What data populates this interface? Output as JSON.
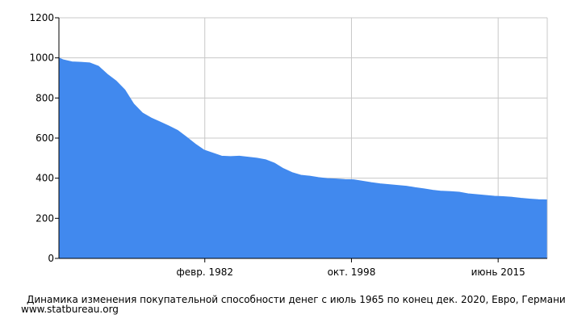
{
  "chart_data": {
    "type": "area",
    "xlabel": "",
    "ylabel": "",
    "ylim": [
      0,
      1200
    ],
    "yticks": [
      0,
      200,
      400,
      600,
      800,
      1000,
      1200
    ],
    "xtick_labels": [
      "февр. 1982",
      "окт. 1998",
      "июнь 2015"
    ],
    "xtick_positions": [
      1982.08,
      1998.75,
      2015.42
    ],
    "xlim": [
      1965.5,
      2021.0
    ],
    "grid": true,
    "series_color": "#4189ee",
    "x": [
      1965.5,
      1966.0,
      1967.0,
      1968.0,
      1969.0,
      1970.0,
      1971.0,
      1972.0,
      1973.0,
      1974.0,
      1975.0,
      1976.0,
      1977.0,
      1978.0,
      1979.0,
      1980.0,
      1981.0,
      1982.0,
      1983.0,
      1984.0,
      1985.0,
      1986.0,
      1987.0,
      1988.0,
      1989.0,
      1990.0,
      1991.0,
      1992.0,
      1993.0,
      1994.0,
      1995.0,
      1996.0,
      1997.0,
      1998.0,
      1999.0,
      2000.0,
      2001.0,
      2002.0,
      2003.0,
      2004.0,
      2005.0,
      2006.0,
      2007.0,
      2008.0,
      2009.0,
      2010.0,
      2011.0,
      2012.0,
      2013.0,
      2014.0,
      2015.0,
      2016.0,
      2017.0,
      2018.0,
      2019.0,
      2020.0,
      2020.92
    ],
    "values": [
      1000,
      990,
      980,
      978,
      975,
      958,
      918,
      885,
      840,
      770,
      725,
      700,
      680,
      660,
      638,
      605,
      570,
      540,
      525,
      510,
      508,
      510,
      505,
      500,
      492,
      475,
      448,
      428,
      415,
      410,
      403,
      398,
      396,
      393,
      392,
      385,
      378,
      372,
      368,
      364,
      360,
      353,
      347,
      340,
      335,
      333,
      330,
      322,
      318,
      314,
      310,
      308,
      305,
      300,
      296,
      293,
      292
    ]
  },
  "caption": "Динамика изменения покупательной способности денег с июль 1965 по конец дек. 2020, Евро, Германия,",
  "source": "www.statbureau.org"
}
